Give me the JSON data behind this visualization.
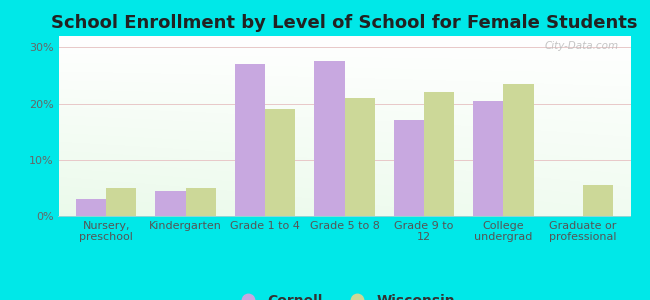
{
  "title": "School Enrollment by Level of School for Female Students",
  "categories": [
    "Nursery,\npreschool",
    "Kindergarten",
    "Grade 1 to 4",
    "Grade 5 to 8",
    "Grade 9 to\n12",
    "College\nundergrad",
    "Graduate or\nprofessional"
  ],
  "cornell_values": [
    3.0,
    4.5,
    27.0,
    27.5,
    17.0,
    20.5,
    0.0
  ],
  "wisconsin_values": [
    5.0,
    5.0,
    19.0,
    21.0,
    22.0,
    23.5,
    5.5
  ],
  "cornell_color": "#c8a8e0",
  "wisconsin_color": "#ccd898",
  "background_outer": "#00e8e8",
  "ylim": [
    0,
    32
  ],
  "yticks": [
    0,
    10,
    20,
    30
  ],
  "ytick_labels": [
    "0%",
    "10%",
    "20%",
    "30%"
  ],
  "bar_width": 0.38,
  "title_fontsize": 13,
  "tick_fontsize": 8,
  "legend_fontsize": 10,
  "watermark": "City-Data.com"
}
